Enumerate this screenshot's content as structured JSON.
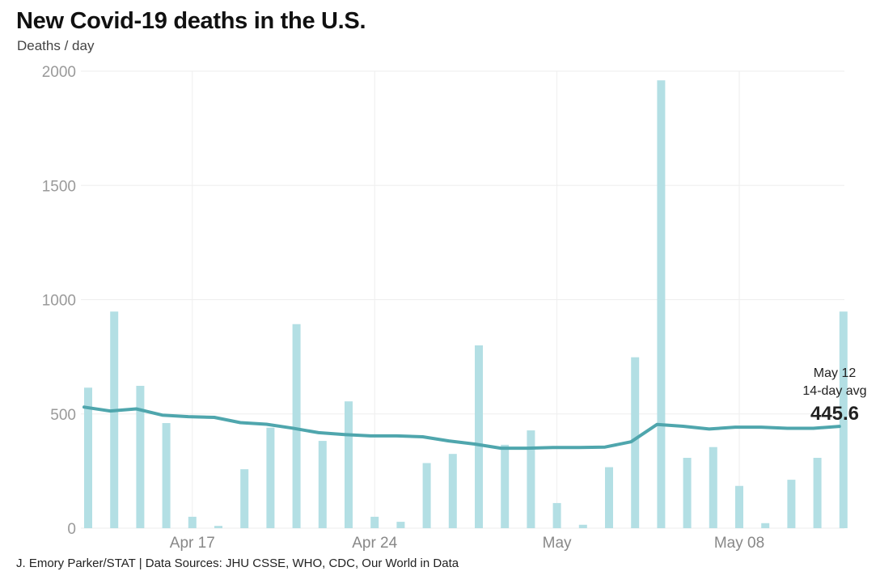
{
  "header": {
    "title": "New Covid-19 deaths in the U.S.",
    "subtitle": "Deaths / day"
  },
  "footer": {
    "source": "J. Emory Parker/STAT | Data Sources: JHU CSSE, WHO, CDC, Our World in Data"
  },
  "colors": {
    "bar": "#b3dfe4",
    "line": "#4fa6ad",
    "grid": "#eeeeee"
  },
  "chart_data": {
    "type": "bar",
    "title": "New Covid-19 deaths in the U.S.",
    "subtitle": "Deaths / day",
    "ylabel": "Deaths / day",
    "ylim": [
      0,
      2000
    ],
    "yticks": [
      "0",
      "500",
      "1000",
      "1500",
      "2000"
    ],
    "xticks": [
      {
        "label": "Apr 17",
        "date": "2023-04-17"
      },
      {
        "label": "Apr 24",
        "date": "2023-04-24"
      },
      {
        "label": "May",
        "date": "2023-05-01"
      },
      {
        "label": "May 08",
        "date": "2023-05-08"
      }
    ],
    "x": [
      "2023-04-13",
      "2023-04-14",
      "2023-04-15",
      "2023-04-16",
      "2023-04-17",
      "2023-04-18",
      "2023-04-19",
      "2023-04-20",
      "2023-04-21",
      "2023-04-22",
      "2023-04-23",
      "2023-04-24",
      "2023-04-25",
      "2023-04-26",
      "2023-04-27",
      "2023-04-28",
      "2023-04-29",
      "2023-04-30",
      "2023-05-01",
      "2023-05-02",
      "2023-05-03",
      "2023-05-04",
      "2023-05-05",
      "2023-05-06",
      "2023-05-07",
      "2023-05-08",
      "2023-05-09",
      "2023-05-10",
      "2023-05-11",
      "2023-05-12"
    ],
    "series": [
      {
        "type": "bar",
        "values": [
          615,
          948,
          623,
          460,
          50,
          10,
          258,
          440,
          893,
          382,
          555,
          50,
          28,
          285,
          325,
          800,
          365,
          428,
          110,
          15,
          267,
          748,
          1960,
          308,
          355,
          185,
          22,
          212,
          308,
          948
        ]
      },
      {
        "type": "line",
        "values": [
          530,
          513,
          522,
          495,
          488,
          485,
          462,
          455,
          438,
          418,
          410,
          404,
          404,
          400,
          382,
          368,
          350,
          350,
          353,
          353,
          355,
          378,
          454,
          446,
          434,
          442,
          442,
          437,
          437,
          445.6
        ]
      }
    ],
    "annotation": {
      "date_label": "May 12",
      "label": "14-day avg",
      "value": "445.6"
    },
    "grid": true,
    "legend": "none"
  }
}
